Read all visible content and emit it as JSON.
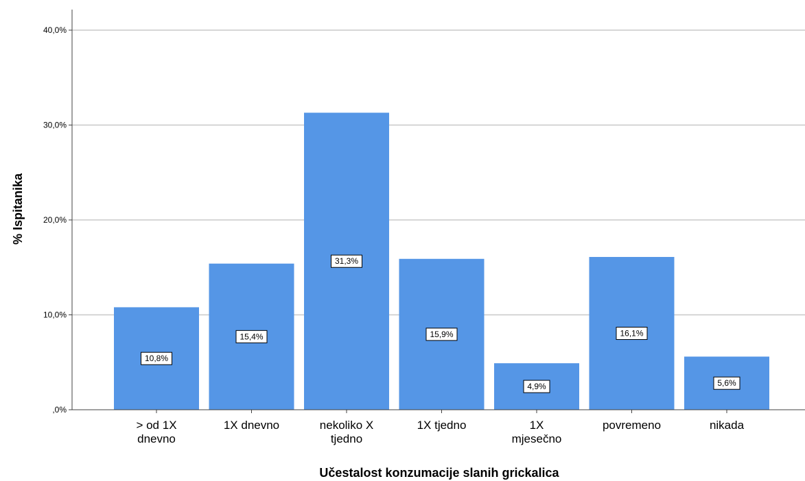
{
  "chart_data": {
    "type": "bar",
    "title": "",
    "xlabel": "Učestalost konzumacije slanih grickalica",
    "ylabel": "% Ispitanika",
    "categories": [
      "> od 1X dnevno",
      "1X dnevno",
      "nekoliko X tjedno",
      "1X tjedno",
      "1X mjesečno",
      "povremeno",
      "nikada"
    ],
    "category_lines": [
      [
        "> od 1X",
        "dnevno"
      ],
      [
        "1X dnevno"
      ],
      [
        "nekoliko X",
        "tjedno"
      ],
      [
        "1X tjedno"
      ],
      [
        "1X",
        "mjesečno"
      ],
      [
        "povremeno"
      ],
      [
        "nikada"
      ]
    ],
    "values": [
      10.8,
      15.4,
      31.3,
      15.9,
      4.9,
      16.1,
      5.6
    ],
    "data_labels": [
      "10,8%",
      "15,4%",
      "31,3%",
      "15,9%",
      "4,9%",
      "16,1%",
      "5,6%"
    ],
    "ylim": [
      0,
      40
    ],
    "yticks": [
      0,
      10,
      20,
      30,
      40
    ],
    "ytick_labels": [
      ",0%",
      "10,0%",
      "20,0%",
      "30,0%",
      "40,0%"
    ],
    "grid": true,
    "legend": "none",
    "bar_color": "#5596e6",
    "grid_color": "#c8c8c8"
  }
}
